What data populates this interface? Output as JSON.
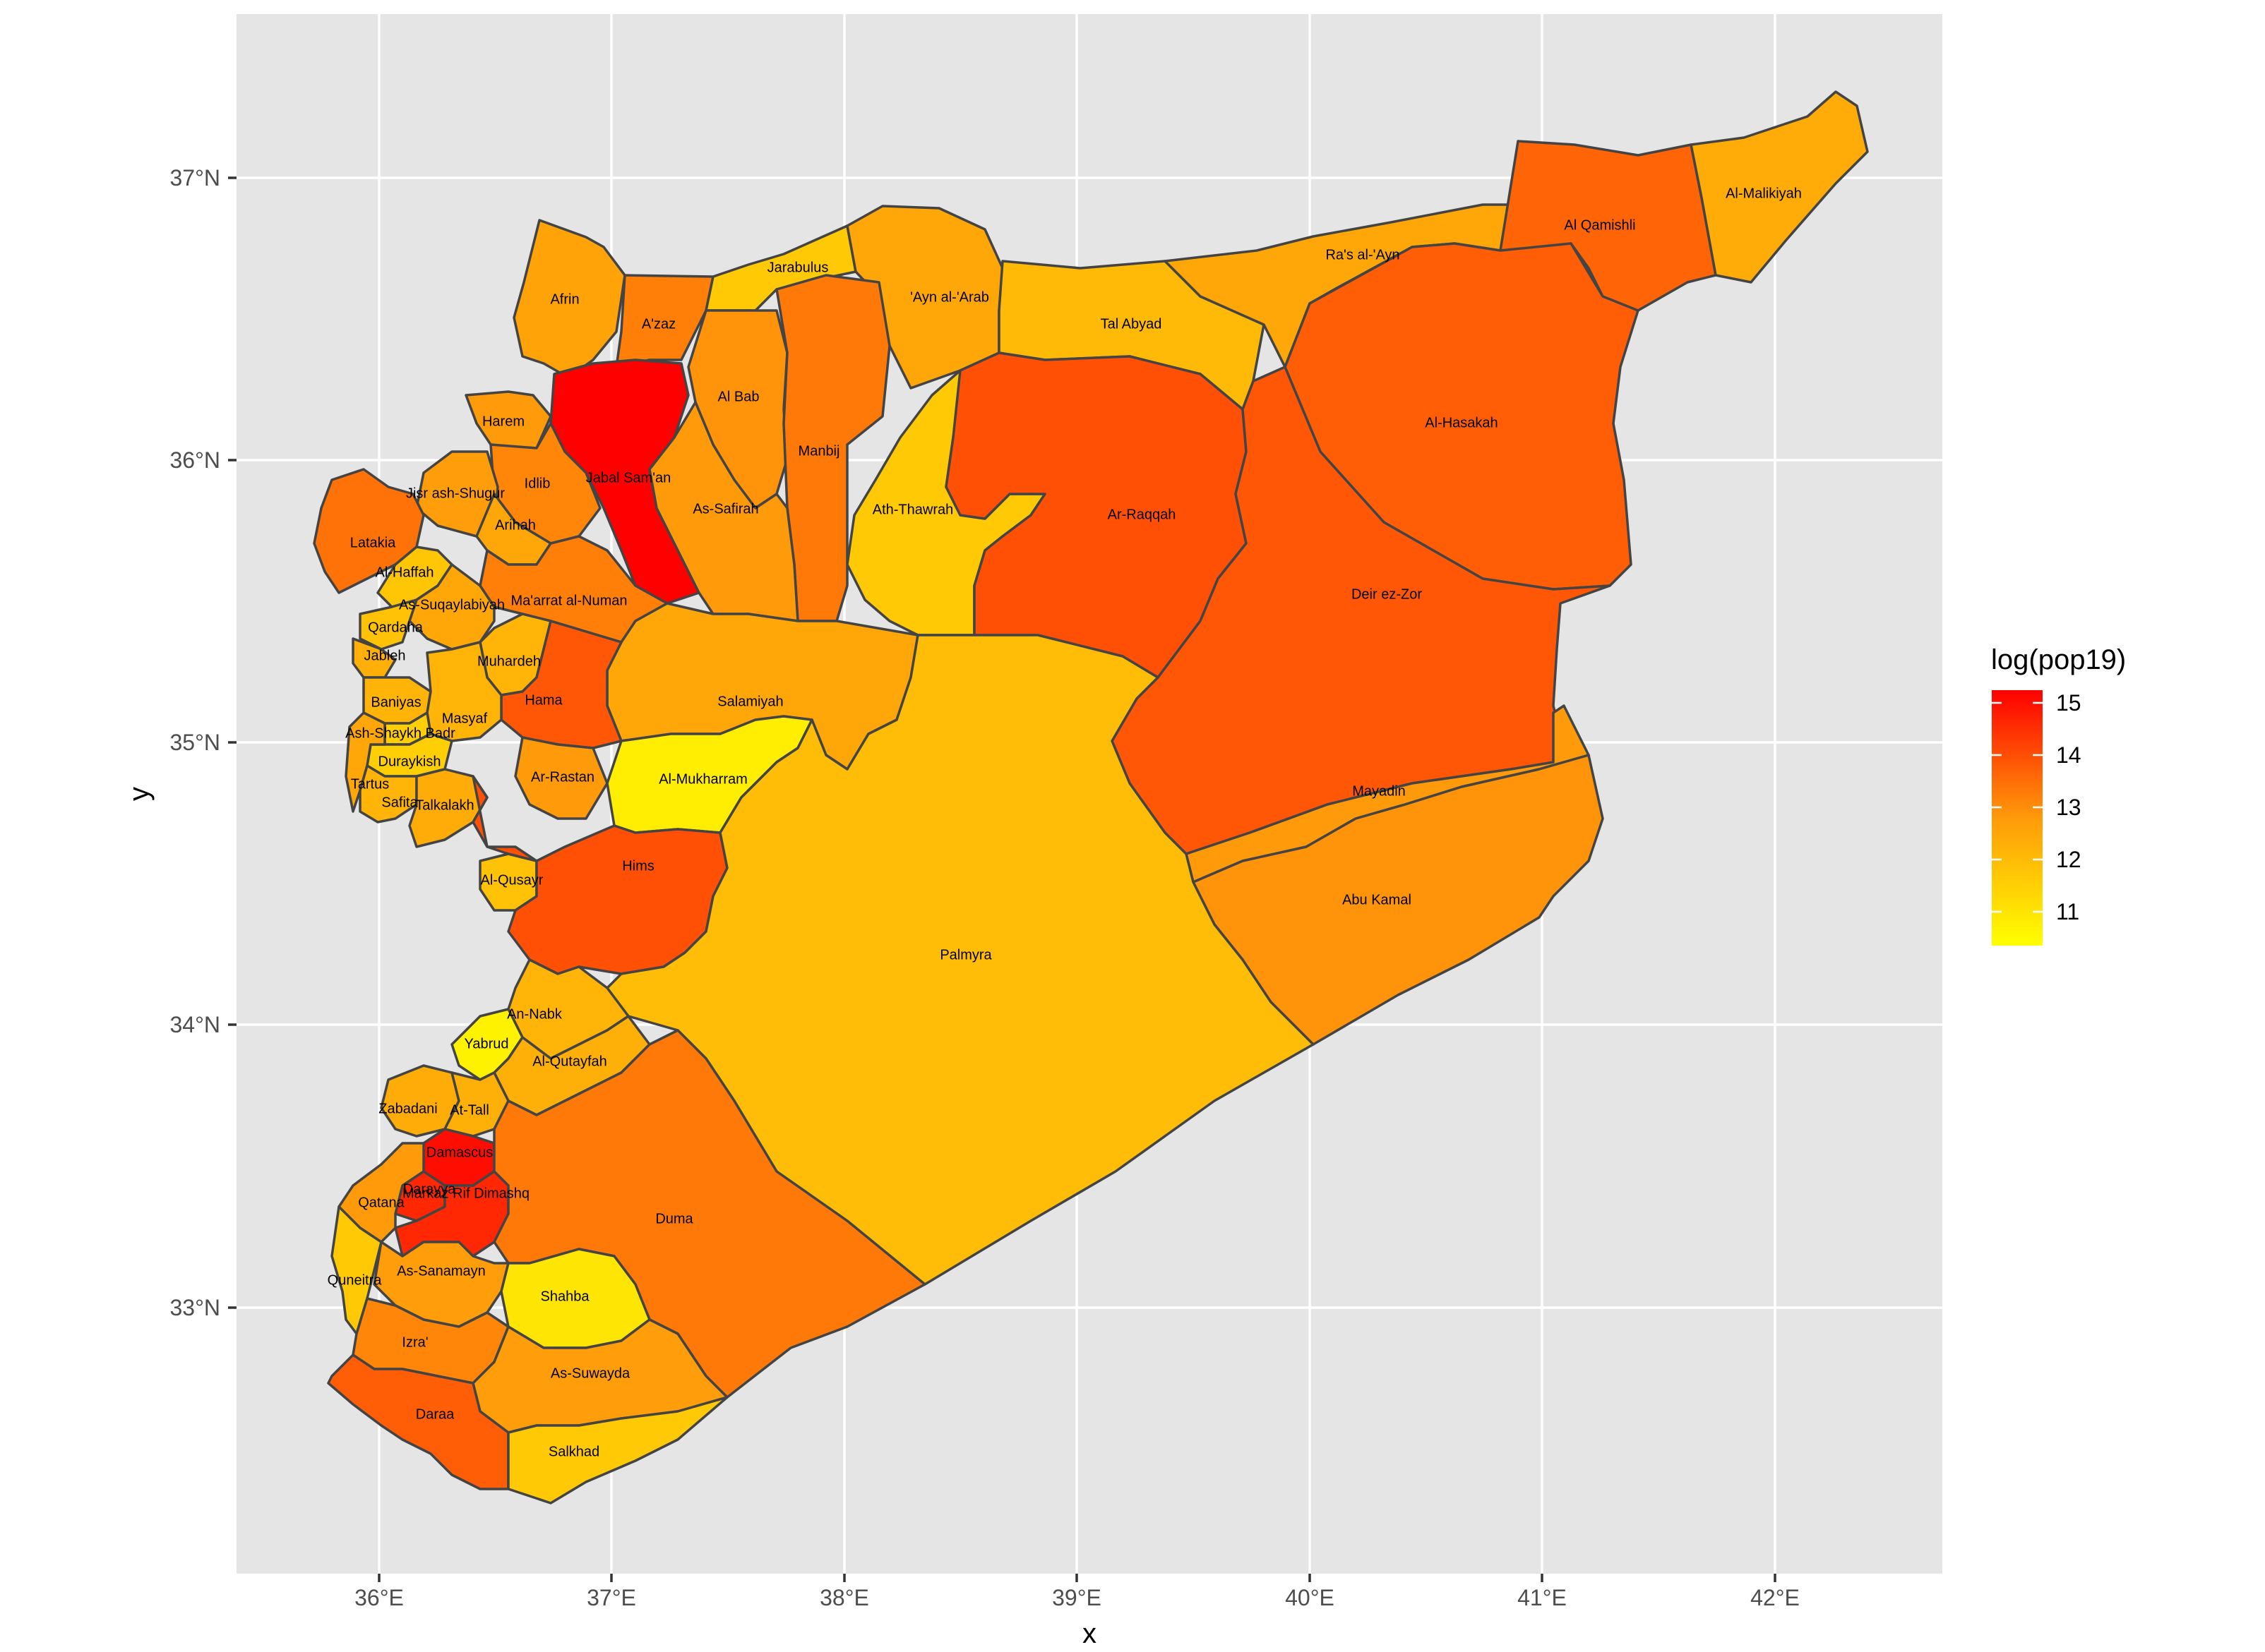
{
  "chart_data": {
    "type": "choropleth-map",
    "xlabel": "x",
    "ylabel": "y",
    "x_ticks": [
      "36°E",
      "37°E",
      "38°E",
      "39°E",
      "40°E",
      "41°E",
      "42°E"
    ],
    "y_ticks": [
      "33°N",
      "34°N",
      "35°N",
      "36°N",
      "37°N"
    ],
    "x_range": [
      35.6,
      42.7
    ],
    "y_range": [
      32.2,
      37.6
    ],
    "grid": true,
    "legend": {
      "title": "log(pop19)",
      "position": "right",
      "ticks": [
        "15",
        "14",
        "13",
        "12",
        "11"
      ],
      "range": [
        10.6,
        15.2
      ],
      "colors": {
        "low": "#ffff00",
        "high": "#ff0000"
      }
    },
    "regions": [
      {
        "name": "Afrin",
        "value": 12.7
      },
      {
        "name": "A'zaz",
        "value": 13.3
      },
      {
        "name": "Jarabulus",
        "value": 11.8
      },
      {
        "name": "'Ayn al-'Arab",
        "value": 12.6
      },
      {
        "name": "Tal Abyad",
        "value": 12.2
      },
      {
        "name": "Ra's al-'Ayn",
        "value": 12.6
      },
      {
        "name": "Al Qamishli",
        "value": 13.7
      },
      {
        "name": "Al-Malikiyah",
        "value": 12.5
      },
      {
        "name": "Harem",
        "value": 12.9
      },
      {
        "name": "Jabal Sam'an",
        "value": 15.2
      },
      {
        "name": "Al Bab",
        "value": 13.0
      },
      {
        "name": "Manbij",
        "value": 13.4
      },
      {
        "name": "Al-Hasakah",
        "value": 13.8
      },
      {
        "name": "Idlib",
        "value": 13.2
      },
      {
        "name": "Jisr ash-Shugur",
        "value": 12.8
      },
      {
        "name": "Arihah",
        "value": 12.6
      },
      {
        "name": "As-Safirah",
        "value": 12.9
      },
      {
        "name": "Ath-Thawrah",
        "value": 11.8
      },
      {
        "name": "Ar-Raqqah",
        "value": 14.0
      },
      {
        "name": "Latakia",
        "value": 13.5
      },
      {
        "name": "Al-Haffah",
        "value": 11.9
      },
      {
        "name": "Ma'arrat al-Numan",
        "value": 13.3
      },
      {
        "name": "As-Suqaylabiyah",
        "value": 12.6
      },
      {
        "name": "Deir ez-Zor",
        "value": 13.9
      },
      {
        "name": "Qardaha",
        "value": 12.0
      },
      {
        "name": "Jableh",
        "value": 12.4
      },
      {
        "name": "Muhardeh",
        "value": 12.3
      },
      {
        "name": "Baniyas",
        "value": 12.3
      },
      {
        "name": "Salamiyah",
        "value": 12.6
      },
      {
        "name": "Hama",
        "value": 13.9
      },
      {
        "name": "Masyaf",
        "value": 12.3
      },
      {
        "name": "Ash-Shaykh Badr",
        "value": 11.7
      },
      {
        "name": "Duraykish",
        "value": 11.7
      },
      {
        "name": "Tartus",
        "value": 12.6
      },
      {
        "name": "Safita",
        "value": 12.3
      },
      {
        "name": "Talkalakh",
        "value": 12.5
      },
      {
        "name": "Ar-Rastan",
        "value": 12.9
      },
      {
        "name": "Al-Mukharram",
        "value": 11.0
      },
      {
        "name": "Mayadin",
        "value": 12.9
      },
      {
        "name": "Al-Qusayr",
        "value": 12.0
      },
      {
        "name": "Hims",
        "value": 14.0
      },
      {
        "name": "Abu Kamal",
        "value": 13.0
      },
      {
        "name": "Palmyra",
        "value": 12.1
      },
      {
        "name": "An-Nabk",
        "value": 12.3
      },
      {
        "name": "Yabrud",
        "value": 10.9
      },
      {
        "name": "Al-Qutayfah",
        "value": 12.4
      },
      {
        "name": "Zabadani",
        "value": 12.5
      },
      {
        "name": "At-Tall",
        "value": 12.4
      },
      {
        "name": "Damascus",
        "value": 15.0
      },
      {
        "name": "Darayya",
        "value": 14.6
      },
      {
        "name": "Markaz Rif Dimashq",
        "value": 14.6
      },
      {
        "name": "Qatana",
        "value": 12.9
      },
      {
        "name": "Duma",
        "value": 13.4
      },
      {
        "name": "Quneitra",
        "value": 11.8
      },
      {
        "name": "As-Sanamayn",
        "value": 12.8
      },
      {
        "name": "Shahba",
        "value": 11.2
      },
      {
        "name": "Izra'",
        "value": 13.2
      },
      {
        "name": "As-Suwayda",
        "value": 12.8
      },
      {
        "name": "Daraa",
        "value": 13.8
      },
      {
        "name": "Salkhad",
        "value": 11.8
      }
    ]
  }
}
